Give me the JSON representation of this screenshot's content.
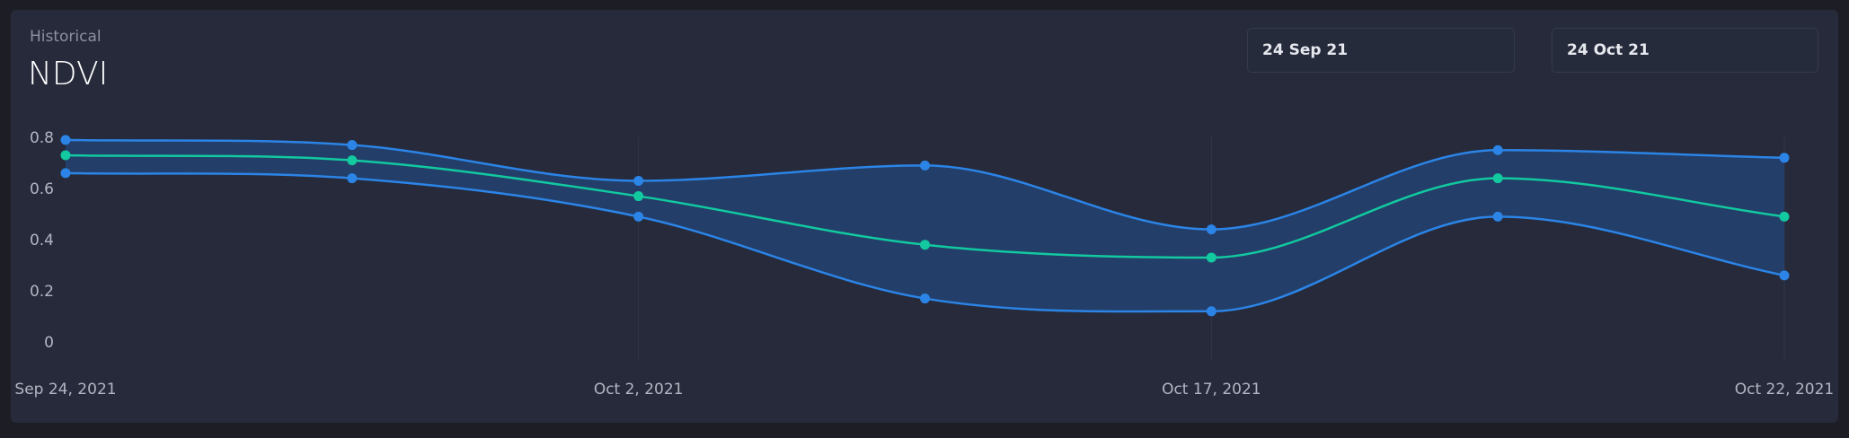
{
  "header": {
    "subtitle": "Historical",
    "title": "NDVI"
  },
  "date_range": {
    "from": "24 Sep 21",
    "to": "24 Oct 21"
  },
  "colors": {
    "background": "#1d1e25",
    "card": "#262a3b",
    "band_line": "#2b84e6",
    "band_fill": "#24406e",
    "mean_line": "#12c9a0"
  },
  "chart_data": {
    "type": "area",
    "title": "NDVI",
    "yticks": [
      "0",
      "0.2",
      "0.4",
      "0.6",
      "0.8"
    ],
    "ylim": [
      0,
      0.8
    ],
    "xtick_labels": [
      {
        "label": "Sep 24, 2021",
        "index": 0
      },
      {
        "label": "Oct 2, 2021",
        "index": 2
      },
      {
        "label": "Oct 17, 2021",
        "index": 4
      },
      {
        "label": "Oct 22, 2021",
        "index": 6
      }
    ],
    "points": 7,
    "series": [
      {
        "role": "upper",
        "values": [
          0.79,
          0.77,
          0.63,
          0.69,
          0.44,
          0.75,
          0.72
        ]
      },
      {
        "role": "mean",
        "values": [
          0.73,
          0.71,
          0.57,
          0.38,
          0.33,
          0.64,
          0.49
        ]
      },
      {
        "role": "lower",
        "values": [
          0.66,
          0.64,
          0.49,
          0.17,
          0.12,
          0.49,
          0.26
        ]
      }
    ],
    "grid": "vertical at labeled dates",
    "legend": "none"
  }
}
